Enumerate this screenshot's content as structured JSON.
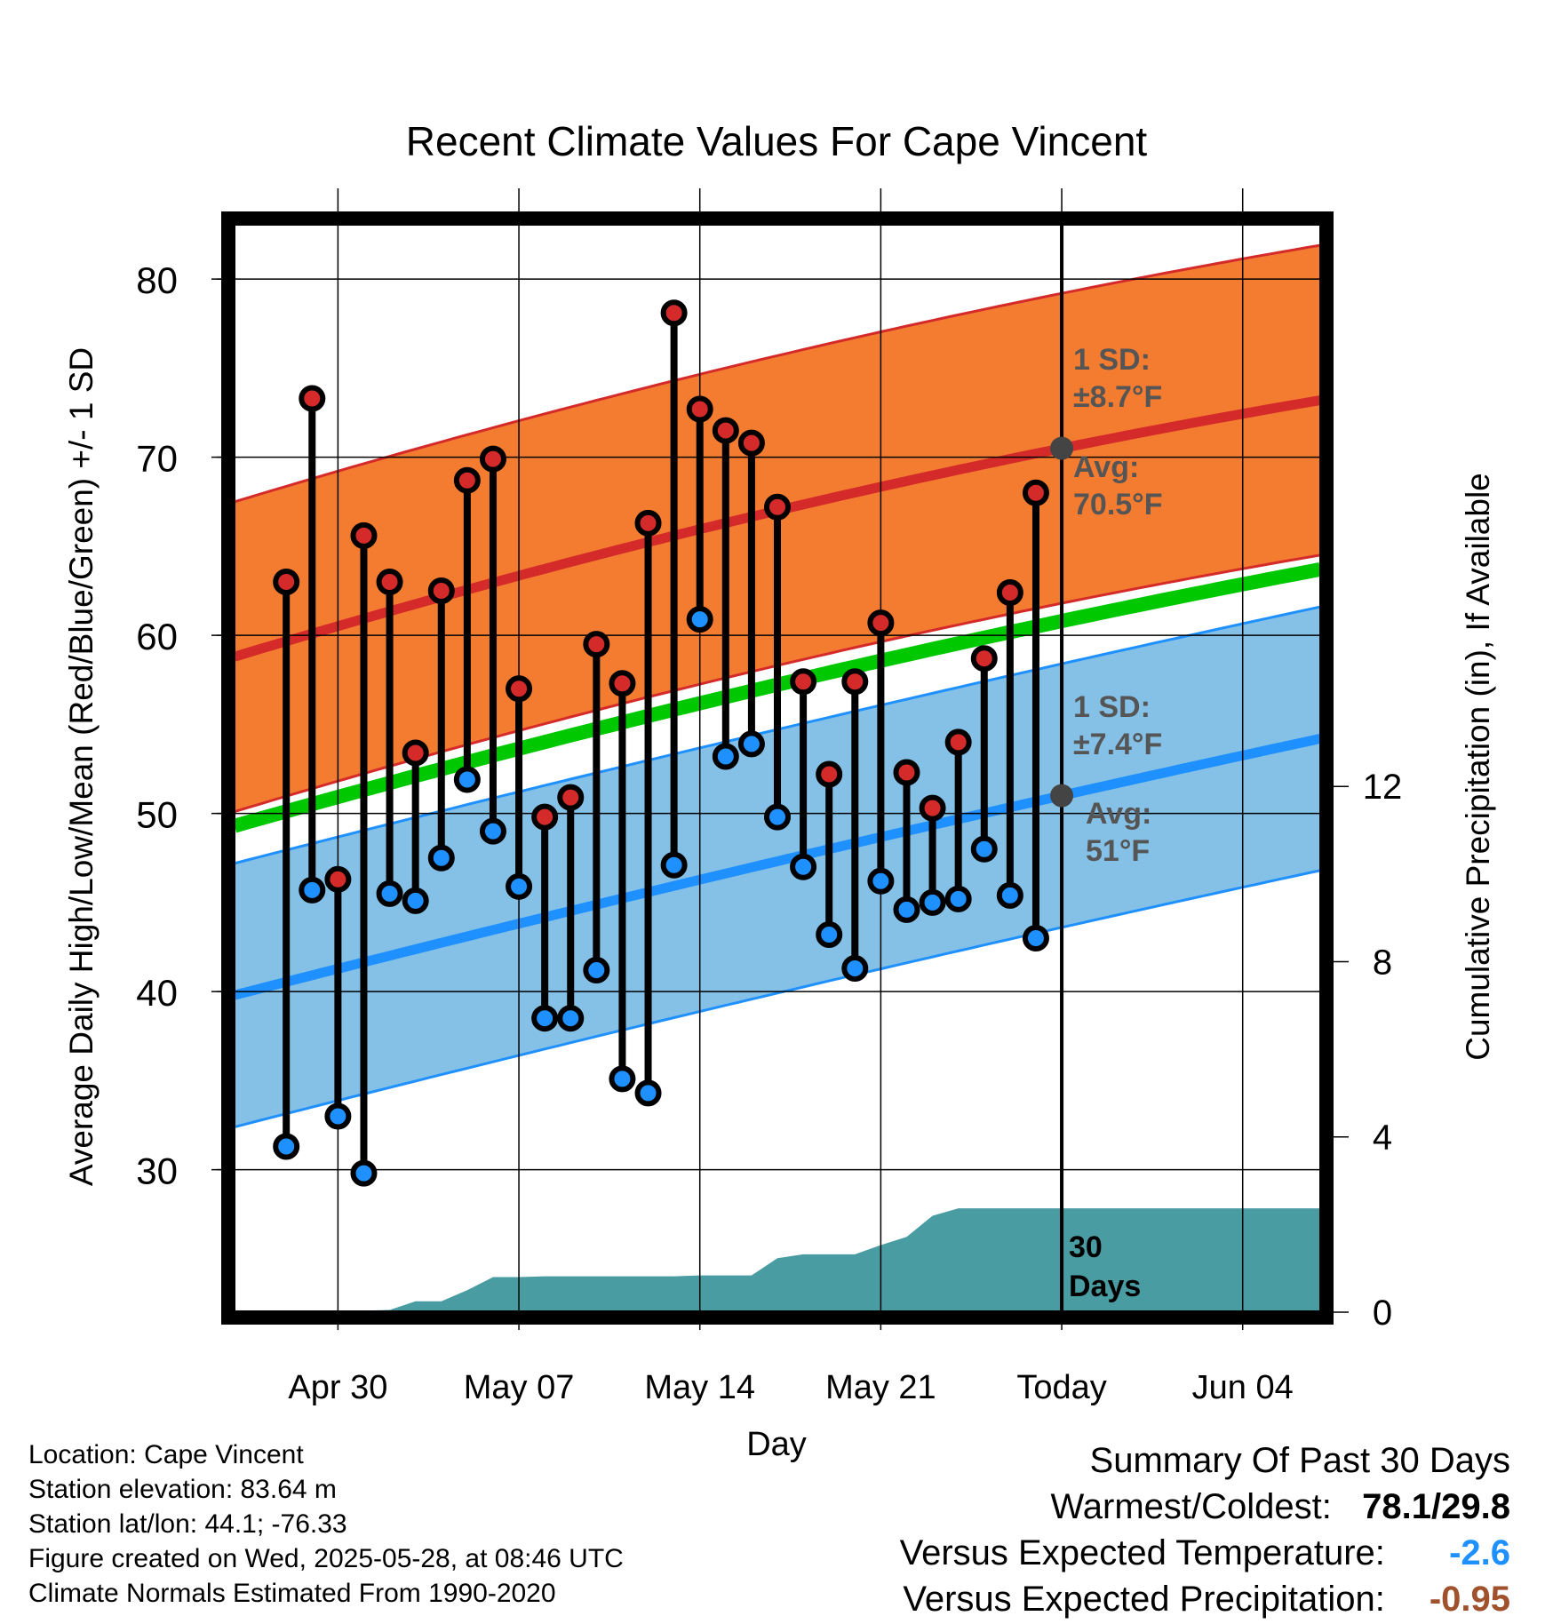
{
  "chart_data": {
    "type": "range",
    "title": "Recent Climate Values For Cape Vincent",
    "xlabel": "Day",
    "ylabel_left": "Average Daily High/Low/Mean (Red/Blue/Green) +/- 1 SD",
    "ylabel_right": "Cumulative Precipitation (in), If Available",
    "x_tick_labels": [
      "Apr 30",
      "May 07",
      "May 14",
      "May 21",
      "Today",
      "Jun 04"
    ],
    "x_range": [
      "2025-04-26",
      "2025-06-07"
    ],
    "today": "2025-05-28",
    "y_left_ticks": [
      30,
      40,
      50,
      60,
      70,
      80
    ],
    "y_left_range": [
      22,
      83
    ],
    "y_right_ticks": [
      0,
      4,
      8,
      12
    ],
    "y_right_range": [
      0,
      24.8
    ],
    "grid": true,
    "dates": [
      "2025-04-28",
      "2025-04-29",
      "2025-04-30",
      "2025-05-01",
      "2025-05-02",
      "2025-05-03",
      "2025-05-04",
      "2025-05-05",
      "2025-05-06",
      "2025-05-07",
      "2025-05-08",
      "2025-05-09",
      "2025-05-10",
      "2025-05-11",
      "2025-05-12",
      "2025-05-13",
      "2025-05-14",
      "2025-05-15",
      "2025-05-16",
      "2025-05-17",
      "2025-05-18",
      "2025-05-19",
      "2025-05-20",
      "2025-05-21",
      "2025-05-22",
      "2025-05-23",
      "2025-05-24",
      "2025-05-25",
      "2025-05-26",
      "2025-05-27"
    ],
    "highs": [
      63,
      73.3,
      46.3,
      65.6,
      63,
      53.4,
      62.5,
      68.7,
      69.9,
      57,
      49.8,
      50.9,
      59.5,
      57.3,
      66.3,
      78.1,
      72.7,
      71.5,
      70.8,
      67.2,
      57.4,
      52.2,
      57.4,
      60.7,
      52.3,
      50.3,
      54,
      58.7,
      62.4,
      68
    ],
    "lows": [
      31.3,
      45.7,
      33,
      29.8,
      45.5,
      45.1,
      47.5,
      51.9,
      49,
      45.9,
      38.5,
      38.5,
      41.2,
      35.1,
      34.3,
      47.1,
      60.9,
      53.2,
      53.9,
      49.8,
      47,
      43.2,
      41.3,
      46.2,
      44.6,
      45,
      45.2,
      48,
      45.4,
      43
    ],
    "normals": {
      "dates": [
        "2025-04-26",
        "2025-05-28",
        "2025-06-07"
      ],
      "high_mean": [
        58.8,
        70.5,
        73.2
      ],
      "high_sd": 8.7,
      "low_mean": [
        39.8,
        51,
        54.2
      ],
      "low_sd": 7.4,
      "mean": [
        49.3,
        60.8,
        63.7
      ]
    },
    "precip_cumulative": {
      "dates": [
        "2025-04-26",
        "2025-04-29",
        "2025-05-02",
        "2025-05-03",
        "2025-05-04",
        "2025-05-05",
        "2025-05-06",
        "2025-05-07",
        "2025-05-08",
        "2025-05-09",
        "2025-05-10",
        "2025-05-11",
        "2025-05-12",
        "2025-05-13",
        "2025-05-14",
        "2025-05-15",
        "2025-05-16",
        "2025-05-17",
        "2025-05-18",
        "2025-05-19",
        "2025-05-20",
        "2025-05-21",
        "2025-05-22",
        "2025-05-23",
        "2025-05-24",
        "2025-05-25",
        "2025-05-26",
        "2025-05-27",
        "2025-05-28",
        "2025-06-07"
      ],
      "values": [
        0,
        0,
        0.05,
        0.25,
        0.25,
        0.5,
        0.8,
        0.8,
        0.82,
        0.82,
        0.82,
        0.82,
        0.82,
        0.82,
        0.84,
        0.84,
        0.84,
        1.23,
        1.32,
        1.32,
        1.32,
        1.53,
        1.72,
        2.2,
        2.37,
        2.37,
        2.37,
        2.37,
        2.37,
        2.37
      ]
    },
    "annotations": {
      "high_sd_label": "1 SD:",
      "high_sd_value": "±8.7°F",
      "high_avg_label": "Avg:",
      "high_avg_value": "70.5°F",
      "low_sd_label": "1 SD:",
      "low_sd_value": "±7.4°F",
      "low_avg_label": "Avg:",
      "low_avg_value": "51°F",
      "days_value": "30",
      "days_label": "Days"
    },
    "colors": {
      "high_band": "#f47c30",
      "high_line": "#d42a2a",
      "low_band": "#85c1e6",
      "low_line": "#1e90ff",
      "mean_line": "#00c800",
      "precip": "#4a9ca3",
      "high_marker": "#d42a2a",
      "low_marker": "#1e90ff",
      "annotation_text": "#555555"
    }
  },
  "footer": {
    "location": "Location: Cape Vincent",
    "elevation": "Station elevation: 83.64 m",
    "latlon": "Station lat/lon: 44.1; -76.33",
    "created": "Figure created on Wed, 2025-05-28, at 08:46 UTC",
    "normals": "Climate Normals Estimated From 1990-2020"
  },
  "summary": {
    "title": "Summary Of Past 30 Days",
    "warmest_label": "Warmest/Coldest:",
    "warmest_value": "78.1/29.8",
    "temp_label": "Versus Expected Temperature:",
    "temp_value": "-2.6",
    "temp_color": "#1e90ff",
    "precip_label": "Versus Expected Precipitation:",
    "precip_value": "-0.95",
    "precip_color": "#a0522d"
  }
}
